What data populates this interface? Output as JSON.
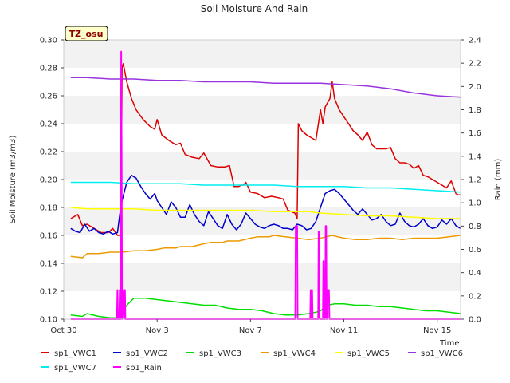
{
  "chart_data": {
    "type": "line",
    "title": "Soil Moisture And Rain",
    "site_tag": "TZ_osu",
    "xlabel": "Time",
    "ylabel": "Soil Moisture (m3/m3)",
    "y2label": "Rain (mm)",
    "xlim": [
      0,
      17
    ],
    "ylim": [
      0.1,
      0.3
    ],
    "y2lim": [
      0.0,
      2.4
    ],
    "x_ticks": [
      {
        "x": 0,
        "label": "Oct 30"
      },
      {
        "x": 4,
        "label": "Nov 3"
      },
      {
        "x": 8,
        "label": "Nov 7"
      },
      {
        "x": 12,
        "label": "Nov 11"
      },
      {
        "x": 16,
        "label": "Nov 15"
      }
    ],
    "y_ticks": [
      "0.10",
      "0.12",
      "0.14",
      "0.16",
      "0.18",
      "0.20",
      "0.22",
      "0.24",
      "0.26",
      "0.28",
      "0.30"
    ],
    "y2_ticks": [
      "0.0",
      "0.2",
      "0.4",
      "0.6",
      "0.8",
      "1.0",
      "1.2",
      "1.4",
      "1.6",
      "1.8",
      "2.0",
      "2.2",
      "2.4"
    ],
    "grid": "horizontal bands",
    "legend_placement": "bottom",
    "series": [
      {
        "name": "sp1_VWC1",
        "color": "#dd0000",
        "axis": "left",
        "x": [
          0.3,
          0.6,
          0.8,
          1.0,
          1.3,
          1.6,
          1.9,
          2.1,
          2.3,
          2.45,
          2.5,
          2.55,
          2.7,
          2.9,
          3.1,
          3.4,
          3.7,
          3.9,
          4.0,
          4.2,
          4.5,
          4.8,
          5.0,
          5.2,
          5.5,
          5.8,
          6.0,
          6.3,
          6.6,
          6.9,
          7.1,
          7.3,
          7.5,
          7.6,
          7.7,
          7.8,
          8.0,
          8.3,
          8.6,
          8.9,
          9.2,
          9.4,
          9.6,
          9.9,
          10.0,
          10.05,
          10.2,
          10.4,
          10.6,
          10.8,
          11.0,
          11.1,
          11.2,
          11.4,
          11.5,
          11.6,
          11.8,
          12.0,
          12.2,
          12.4,
          12.6,
          12.8,
          13.0,
          13.2,
          13.4,
          13.6,
          13.8,
          14.0,
          14.2,
          14.4,
          14.6,
          14.8,
          15.0,
          15.2,
          15.4,
          15.6,
          15.8,
          16.0,
          16.2,
          16.4,
          16.6,
          16.8,
          16.9,
          17.0
        ],
        "values": [
          0.172,
          0.175,
          0.167,
          0.168,
          0.165,
          0.162,
          0.162,
          0.165,
          0.16,
          0.16,
          0.28,
          0.283,
          0.27,
          0.258,
          0.25,
          0.243,
          0.238,
          0.236,
          0.243,
          0.232,
          0.228,
          0.225,
          0.226,
          0.218,
          0.216,
          0.215,
          0.219,
          0.21,
          0.209,
          0.209,
          0.21,
          0.195,
          0.195,
          0.196,
          0.196,
          0.198,
          0.191,
          0.19,
          0.187,
          0.188,
          0.187,
          0.186,
          0.178,
          0.176,
          0.172,
          0.24,
          0.235,
          0.232,
          0.23,
          0.228,
          0.25,
          0.24,
          0.252,
          0.258,
          0.27,
          0.258,
          0.25,
          0.245,
          0.24,
          0.235,
          0.232,
          0.228,
          0.234,
          0.225,
          0.222,
          0.222,
          0.222,
          0.223,
          0.215,
          0.212,
          0.212,
          0.211,
          0.208,
          0.21,
          0.203,
          0.202,
          0.2,
          0.198,
          0.196,
          0.194,
          0.199,
          0.19,
          0.189,
          0.189
        ]
      },
      {
        "name": "sp1_VWC2",
        "color": "#0000cc",
        "axis": "left",
        "x": [
          0.3,
          0.5,
          0.7,
          0.9,
          1.1,
          1.3,
          1.5,
          1.7,
          1.9,
          2.1,
          2.3,
          2.4,
          2.5,
          2.7,
          2.9,
          3.1,
          3.3,
          3.5,
          3.7,
          3.9,
          4.0,
          4.2,
          4.4,
          4.6,
          4.8,
          5.0,
          5.2,
          5.4,
          5.6,
          5.8,
          6.0,
          6.2,
          6.4,
          6.6,
          6.8,
          7.0,
          7.2,
          7.4,
          7.6,
          7.8,
          8.0,
          8.2,
          8.4,
          8.6,
          8.8,
          9.0,
          9.2,
          9.4,
          9.6,
          9.8,
          10.0,
          10.2,
          10.4,
          10.6,
          10.8,
          11.0,
          11.2,
          11.4,
          11.6,
          11.8,
          12.0,
          12.2,
          12.4,
          12.6,
          12.8,
          13.0,
          13.2,
          13.4,
          13.6,
          13.8,
          14.0,
          14.2,
          14.4,
          14.6,
          14.8,
          15.0,
          15.2,
          15.4,
          15.6,
          15.8,
          16.0,
          16.2,
          16.4,
          16.6,
          16.8,
          17.0
        ],
        "values": [
          0.165,
          0.163,
          0.162,
          0.168,
          0.163,
          0.165,
          0.162,
          0.161,
          0.163,
          0.161,
          0.162,
          0.175,
          0.185,
          0.198,
          0.203,
          0.201,
          0.195,
          0.19,
          0.186,
          0.19,
          0.185,
          0.18,
          0.175,
          0.184,
          0.18,
          0.173,
          0.173,
          0.182,
          0.175,
          0.17,
          0.167,
          0.177,
          0.172,
          0.167,
          0.165,
          0.175,
          0.168,
          0.164,
          0.168,
          0.176,
          0.172,
          0.168,
          0.166,
          0.165,
          0.167,
          0.168,
          0.167,
          0.165,
          0.165,
          0.164,
          0.168,
          0.167,
          0.164,
          0.165,
          0.17,
          0.18,
          0.19,
          0.192,
          0.193,
          0.19,
          0.186,
          0.182,
          0.178,
          0.175,
          0.179,
          0.175,
          0.171,
          0.172,
          0.175,
          0.17,
          0.167,
          0.168,
          0.176,
          0.17,
          0.167,
          0.166,
          0.168,
          0.172,
          0.167,
          0.165,
          0.166,
          0.171,
          0.168,
          0.172,
          0.167,
          0.165
        ]
      },
      {
        "name": "sp1_VWC3",
        "color": "#00dd00",
        "axis": "left",
        "x": [
          0.3,
          0.8,
          1.0,
          1.5,
          2.0,
          2.3,
          2.5,
          2.7,
          3.0,
          3.5,
          4.0,
          4.5,
          5.0,
          5.5,
          6.0,
          6.5,
          7.0,
          7.5,
          8.0,
          8.5,
          9.0,
          9.5,
          10.0,
          10.5,
          10.8,
          11.0,
          11.3,
          11.6,
          12.0,
          12.5,
          13.0,
          13.5,
          14.0,
          14.5,
          15.0,
          15.5,
          16.0,
          16.5,
          17.0
        ],
        "values": [
          0.103,
          0.102,
          0.104,
          0.102,
          0.101,
          0.101,
          0.105,
          0.11,
          0.115,
          0.115,
          0.114,
          0.113,
          0.112,
          0.111,
          0.11,
          0.11,
          0.108,
          0.107,
          0.107,
          0.106,
          0.104,
          0.103,
          0.103,
          0.104,
          0.105,
          0.106,
          0.11,
          0.111,
          0.111,
          0.11,
          0.11,
          0.109,
          0.109,
          0.108,
          0.107,
          0.106,
          0.106,
          0.105,
          0.104
        ]
      },
      {
        "name": "sp1_VWC4",
        "color": "#ee9900",
        "axis": "left",
        "x": [
          0.3,
          0.8,
          1.0,
          1.5,
          2.0,
          2.5,
          3.0,
          3.5,
          4.0,
          4.3,
          4.8,
          5.0,
          5.5,
          6.0,
          6.3,
          6.8,
          7.0,
          7.5,
          8.0,
          8.3,
          8.8,
          9.0,
          9.5,
          10.0,
          10.5,
          11.0,
          11.5,
          12.0,
          12.5,
          13.0,
          13.5,
          14.0,
          14.5,
          15.0,
          15.5,
          16.0,
          16.5,
          17.0
        ],
        "values": [
          0.145,
          0.144,
          0.147,
          0.147,
          0.148,
          0.148,
          0.149,
          0.149,
          0.15,
          0.151,
          0.151,
          0.152,
          0.152,
          0.154,
          0.155,
          0.155,
          0.156,
          0.156,
          0.158,
          0.159,
          0.159,
          0.16,
          0.159,
          0.158,
          0.157,
          0.158,
          0.16,
          0.158,
          0.157,
          0.157,
          0.158,
          0.158,
          0.157,
          0.158,
          0.158,
          0.158,
          0.159,
          0.16
        ]
      },
      {
        "name": "sp1_VWC5",
        "color": "#ffff00",
        "axis": "left",
        "x": [
          0.3,
          1.0,
          2.0,
          3.0,
          4.0,
          5.0,
          6.0,
          7.0,
          8.0,
          9.0,
          9.5,
          10.0,
          10.5,
          11.0,
          12.0,
          13.0,
          14.0,
          15.0,
          16.0,
          17.0
        ],
        "values": [
          0.18,
          0.179,
          0.179,
          0.179,
          0.178,
          0.178,
          0.178,
          0.178,
          0.178,
          0.177,
          0.177,
          0.177,
          0.177,
          0.176,
          0.175,
          0.174,
          0.174,
          0.173,
          0.172,
          0.172
        ]
      },
      {
        "name": "sp1_VWC6",
        "color": "#9933dd",
        "axis": "left",
        "x": [
          0.3,
          1.0,
          2.0,
          3.0,
          4.0,
          5.0,
          6.0,
          7.0,
          8.0,
          9.0,
          10.0,
          11.0,
          12.0,
          13.0,
          14.0,
          15.0,
          16.0,
          17.0
        ],
        "values": [
          0.273,
          0.273,
          0.272,
          0.272,
          0.271,
          0.271,
          0.27,
          0.27,
          0.27,
          0.269,
          0.269,
          0.269,
          0.268,
          0.267,
          0.265,
          0.262,
          0.26,
          0.259
        ]
      },
      {
        "name": "sp1_VWC7",
        "color": "#00eeee",
        "axis": "left",
        "x": [
          0.3,
          1.0,
          2.0,
          3.0,
          4.0,
          5.0,
          6.0,
          7.0,
          8.0,
          9.0,
          10.0,
          11.0,
          12.0,
          13.0,
          14.0,
          15.0,
          16.0,
          17.0
        ],
        "values": [
          0.198,
          0.198,
          0.198,
          0.197,
          0.197,
          0.197,
          0.196,
          0.196,
          0.196,
          0.196,
          0.195,
          0.195,
          0.195,
          0.194,
          0.194,
          0.193,
          0.192,
          0.191
        ]
      },
      {
        "name": "sp1_Rain",
        "color": "#ff00ff",
        "axis": "right",
        "x": [
          0.3,
          2.28,
          2.3,
          2.32,
          2.38,
          2.4,
          2.42,
          2.44,
          2.46,
          2.48,
          2.5,
          2.52,
          2.58,
          2.6,
          2.62,
          2.64,
          2.8,
          9.92,
          9.94,
          9.96,
          9.98,
          10.0,
          10.02,
          10.56,
          10.58,
          10.6,
          10.62,
          10.64,
          10.66,
          10.68,
          10.9,
          10.92,
          10.94,
          10.96,
          11.1,
          11.12,
          11.14,
          11.16,
          11.2,
          11.22,
          11.24,
          11.26,
          11.28,
          11.3,
          11.32,
          11.34,
          11.36,
          11.38,
          17.0
        ],
        "values": [
          0,
          0,
          0.25,
          0,
          0,
          0.25,
          0,
          0,
          2.3,
          1.5,
          0,
          0.25,
          0,
          0.25,
          0.25,
          0,
          0,
          0,
          0.8,
          0.8,
          0.8,
          0.8,
          0,
          0,
          0.25,
          0,
          0.25,
          0.25,
          0,
          0,
          0,
          0.75,
          0.75,
          0,
          0,
          0.5,
          0.5,
          0,
          0,
          0.8,
          0.8,
          0,
          0,
          0.25,
          0.25,
          0.25,
          0.25,
          0,
          0
        ]
      }
    ]
  }
}
